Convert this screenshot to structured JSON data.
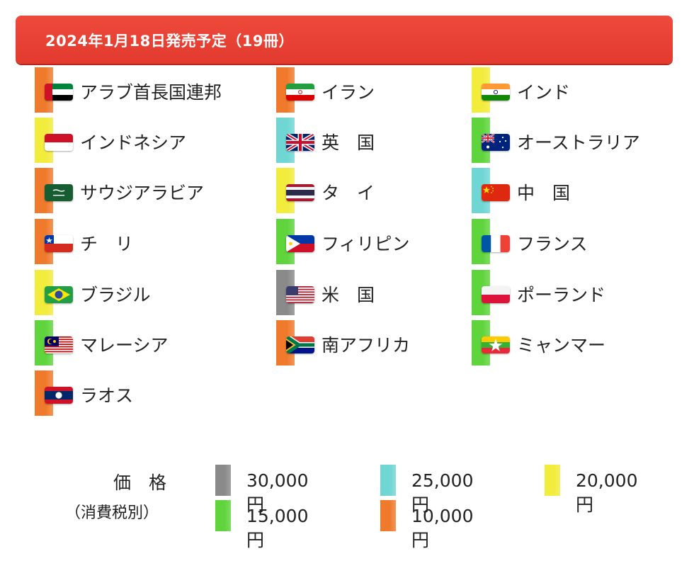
{
  "header": {
    "title": "2024年1月18日発売予定（19冊）"
  },
  "colors": {
    "tier_30000": "#8a8a8a",
    "tier_25000": "#6fd6d4",
    "tier_20000": "#f2ec3c",
    "tier_15000": "#5fd43c",
    "tier_10000": "#f07a2c"
  },
  "countries": [
    {
      "name": "アラブ首長国連邦",
      "flag": "uae-flag-icon",
      "tier": "10000"
    },
    {
      "name": "インドネシア",
      "flag": "indonesia-flag-icon",
      "tier": "20000"
    },
    {
      "name": "サウジアラビア",
      "flag": "saudi-flag-icon",
      "tier": "10000"
    },
    {
      "name": "チ　リ",
      "flag": "chile-flag-icon",
      "tier": "10000"
    },
    {
      "name": "ブラジル",
      "flag": "brazil-flag-icon",
      "tier": "20000"
    },
    {
      "name": "マレーシア",
      "flag": "malaysia-flag-icon",
      "tier": "15000"
    },
    {
      "name": "ラオス",
      "flag": "laos-flag-icon",
      "tier": "10000"
    },
    {
      "name": "イラン",
      "flag": "iran-flag-icon",
      "tier": "10000"
    },
    {
      "name": "英　国",
      "flag": "uk-flag-icon",
      "tier": "25000"
    },
    {
      "name": "タ　イ",
      "flag": "thailand-flag-icon",
      "tier": "20000"
    },
    {
      "name": "フィリピン",
      "flag": "philippines-flag-icon",
      "tier": "15000"
    },
    {
      "name": "米　国",
      "flag": "usa-flag-icon",
      "tier": "30000"
    },
    {
      "name": "南アフリカ",
      "flag": "south-africa-flag-icon",
      "tier": "10000"
    },
    {
      "name": "インド",
      "flag": "india-flag-icon",
      "tier": "20000"
    },
    {
      "name": "オーストラリア",
      "flag": "australia-flag-icon",
      "tier": "15000"
    },
    {
      "name": "中　国",
      "flag": "china-flag-icon",
      "tier": "25000"
    },
    {
      "name": "フランス",
      "flag": "france-flag-icon",
      "tier": "15000"
    },
    {
      "name": "ポーランド",
      "flag": "poland-flag-icon",
      "tier": "15000"
    },
    {
      "name": "ミャンマー",
      "flag": "myanmar-flag-icon",
      "tier": "15000"
    }
  ],
  "price_legend": {
    "heading": "価　格",
    "note": "（消費税別）",
    "items": [
      {
        "label": "30,000円",
        "tier": "30000"
      },
      {
        "label": "25,000円",
        "tier": "25000"
      },
      {
        "label": "20,000円",
        "tier": "20000"
      },
      {
        "label": "15,000円",
        "tier": "15000"
      },
      {
        "label": "10,000円",
        "tier": "10000"
      }
    ]
  }
}
